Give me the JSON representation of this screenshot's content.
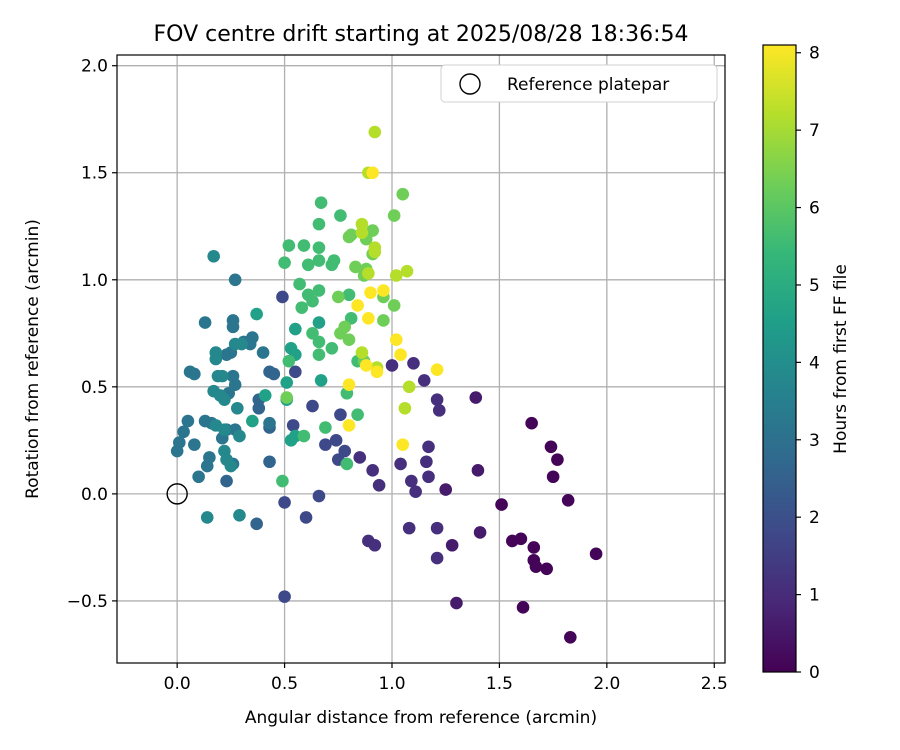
{
  "chart_data": {
    "type": "scatter",
    "title": "FOV centre drift starting at 2025/08/28 18:36:54",
    "xlabel": "Angular distance from reference (arcmin)",
    "ylabel": "Rotation from reference (arcmin)",
    "xlim": [
      -0.28,
      2.55
    ],
    "ylim": [
      -0.79,
      2.05
    ],
    "xticks": [
      0.0,
      0.5,
      1.0,
      1.5,
      2.0,
      2.5
    ],
    "xtick_labels": [
      "0.0",
      "0.5",
      "1.0",
      "1.5",
      "2.0",
      "2.5"
    ],
    "yticks": [
      -0.5,
      0.0,
      0.5,
      1.0,
      1.5,
      2.0
    ],
    "ytick_labels": [
      "−0.5",
      "0.0",
      "0.5",
      "1.0",
      "1.5",
      "2.0"
    ],
    "grid": true,
    "legend": {
      "placement": "top-right",
      "entries": [
        "Reference platepar"
      ]
    },
    "reference_point": {
      "name": "Reference platepar",
      "x": 0.0,
      "y": 0.0,
      "marker": "open-circle"
    },
    "colorbar": {
      "label": "Hours from first FF file",
      "min": 0,
      "max": 8.1,
      "ticks": [
        0,
        1,
        2,
        3,
        4,
        5,
        6,
        7,
        8
      ],
      "tick_labels": [
        "0",
        "1",
        "2",
        "3",
        "4",
        "5",
        "6",
        "7",
        "8"
      ],
      "colormap": "viridis",
      "colors": [
        "#440154",
        "#482878",
        "#3e4989",
        "#31688e",
        "#26828e",
        "#1f9e89",
        "#35b779",
        "#6ece58",
        "#b5de2b",
        "#fde725"
      ]
    },
    "point_value_name": "hours",
    "points": [
      {
        "x": 1.65,
        "y": 0.33,
        "h": 0.1
      },
      {
        "x": 1.74,
        "y": 0.22,
        "h": 0.1
      },
      {
        "x": 1.77,
        "y": 0.16,
        "h": 0.1
      },
      {
        "x": 1.75,
        "y": 0.08,
        "h": 0.1
      },
      {
        "x": 1.82,
        "y": -0.03,
        "h": 0.1
      },
      {
        "x": 1.51,
        "y": -0.05,
        "h": 0.1
      },
      {
        "x": 1.56,
        "y": -0.22,
        "h": 0.1
      },
      {
        "x": 1.6,
        "y": -0.21,
        "h": 0.1
      },
      {
        "x": 1.66,
        "y": -0.25,
        "h": 0.1
      },
      {
        "x": 1.66,
        "y": -0.31,
        "h": 0.1
      },
      {
        "x": 1.67,
        "y": -0.34,
        "h": 0.1
      },
      {
        "x": 1.72,
        "y": -0.35,
        "h": 0.1
      },
      {
        "x": 1.95,
        "y": -0.28,
        "h": 0.1
      },
      {
        "x": 1.61,
        "y": -0.53,
        "h": 0.1
      },
      {
        "x": 1.83,
        "y": -0.67,
        "h": 0.1
      },
      {
        "x": 1.39,
        "y": 0.45,
        "h": 0.6
      },
      {
        "x": 1.4,
        "y": 0.11,
        "h": 0.6
      },
      {
        "x": 1.41,
        "y": -0.18,
        "h": 0.6
      },
      {
        "x": 1.3,
        "y": -0.51,
        "h": 0.6
      },
      {
        "x": 1.28,
        "y": -0.24,
        "h": 0.6
      },
      {
        "x": 1.25,
        "y": 0.02,
        "h": 0.6
      },
      {
        "x": 1.0,
        "y": 0.6,
        "h": 1.1
      },
      {
        "x": 1.1,
        "y": 0.61,
        "h": 1.1
      },
      {
        "x": 1.15,
        "y": 0.53,
        "h": 1.1
      },
      {
        "x": 1.21,
        "y": 0.44,
        "h": 1.1
      },
      {
        "x": 1.22,
        "y": 0.39,
        "h": 1.1
      },
      {
        "x": 1.17,
        "y": 0.22,
        "h": 1.1
      },
      {
        "x": 1.16,
        "y": 0.15,
        "h": 1.1
      },
      {
        "x": 1.17,
        "y": 0.08,
        "h": 1.1
      },
      {
        "x": 1.09,
        "y": 0.06,
        "h": 1.1
      },
      {
        "x": 1.11,
        "y": 0.01,
        "h": 1.1
      },
      {
        "x": 1.04,
        "y": 0.14,
        "h": 1.1
      },
      {
        "x": 0.91,
        "y": 0.11,
        "h": 1.1
      },
      {
        "x": 0.94,
        "y": 0.04,
        "h": 1.1
      },
      {
        "x": 0.85,
        "y": 0.17,
        "h": 1.1
      },
      {
        "x": 0.89,
        "y": -0.22,
        "h": 1.1
      },
      {
        "x": 0.92,
        "y": -0.24,
        "h": 1.1
      },
      {
        "x": 1.08,
        "y": -0.16,
        "h": 1.1
      },
      {
        "x": 1.21,
        "y": -0.16,
        "h": 1.1
      },
      {
        "x": 1.21,
        "y": -0.3,
        "h": 1.1
      },
      {
        "x": 0.74,
        "y": 0.25,
        "h": 1.8
      },
      {
        "x": 0.78,
        "y": 0.2,
        "h": 1.8
      },
      {
        "x": 0.75,
        "y": 0.16,
        "h": 1.8
      },
      {
        "x": 0.76,
        "y": 0.37,
        "h": 1.8
      },
      {
        "x": 0.69,
        "y": 0.23,
        "h": 1.8
      },
      {
        "x": 0.66,
        "y": -0.01,
        "h": 1.8
      },
      {
        "x": 0.6,
        "y": -0.11,
        "h": 1.8
      },
      {
        "x": 0.5,
        "y": -0.04,
        "h": 1.8
      },
      {
        "x": 0.5,
        "y": -0.48,
        "h": 1.8
      },
      {
        "x": 0.55,
        "y": 0.57,
        "h": 1.8
      },
      {
        "x": 0.63,
        "y": 0.41,
        "h": 1.8
      },
      {
        "x": 0.49,
        "y": 0.92,
        "h": 1.8
      },
      {
        "x": 0.54,
        "y": 0.32,
        "h": 1.8
      },
      {
        "x": 0.43,
        "y": 0.31,
        "h": 2.6
      },
      {
        "x": 0.43,
        "y": 0.15,
        "h": 2.6
      },
      {
        "x": 0.43,
        "y": 0.57,
        "h": 2.6
      },
      {
        "x": 0.45,
        "y": 0.56,
        "h": 2.6
      },
      {
        "x": 0.38,
        "y": 0.4,
        "h": 2.6
      },
      {
        "x": 0.38,
        "y": 0.44,
        "h": 2.6
      },
      {
        "x": 0.23,
        "y": 0.06,
        "h": 2.6
      },
      {
        "x": 0.37,
        "y": -0.14,
        "h": 2.6
      },
      {
        "x": 0.13,
        "y": 0.8,
        "h": 3.2
      },
      {
        "x": 0.26,
        "y": 0.81,
        "h": 3.2
      },
      {
        "x": 0.26,
        "y": 0.78,
        "h": 3.2
      },
      {
        "x": 0.27,
        "y": 1.0,
        "h": 3.2
      },
      {
        "x": 0.06,
        "y": 0.57,
        "h": 3.2
      },
      {
        "x": 0.08,
        "y": 0.56,
        "h": 3.2
      },
      {
        "x": 0.05,
        "y": 0.34,
        "h": 3.2
      },
      {
        "x": 0.03,
        "y": 0.29,
        "h": 3.2
      },
      {
        "x": 0.01,
        "y": 0.24,
        "h": 3.2
      },
      {
        "x": 0.0,
        "y": 0.2,
        "h": 3.2
      },
      {
        "x": 0.08,
        "y": 0.23,
        "h": 3.2
      },
      {
        "x": 0.1,
        "y": 0.08,
        "h": 3.2
      },
      {
        "x": 0.14,
        "y": 0.13,
        "h": 3.2
      },
      {
        "x": 0.15,
        "y": 0.17,
        "h": 3.2
      },
      {
        "x": 0.13,
        "y": 0.34,
        "h": 3.2
      },
      {
        "x": 0.16,
        "y": 0.33,
        "h": 3.2
      },
      {
        "x": 0.23,
        "y": 0.3,
        "h": 3.2
      },
      {
        "x": 0.27,
        "y": 0.3,
        "h": 3.2
      },
      {
        "x": 0.21,
        "y": 0.26,
        "h": 3.2
      },
      {
        "x": 0.26,
        "y": 0.14,
        "h": 3.2
      },
      {
        "x": 0.24,
        "y": 0.47,
        "h": 3.2
      },
      {
        "x": 0.27,
        "y": 0.51,
        "h": 3.2
      },
      {
        "x": 0.26,
        "y": 0.55,
        "h": 3.2
      },
      {
        "x": 0.23,
        "y": 0.65,
        "h": 3.2
      },
      {
        "x": 0.25,
        "y": 0.66,
        "h": 3.2
      },
      {
        "x": 0.35,
        "y": 0.73,
        "h": 3.2
      },
      {
        "x": 0.34,
        "y": 0.7,
        "h": 3.2
      },
      {
        "x": 0.4,
        "y": 0.66,
        "h": 3.2
      },
      {
        "x": 0.31,
        "y": 0.71,
        "h": 3.2
      },
      {
        "x": 0.43,
        "y": 0.33,
        "h": 3.2
      },
      {
        "x": 0.17,
        "y": 1.11,
        "h": 3.8
      },
      {
        "x": 0.18,
        "y": 0.66,
        "h": 3.8
      },
      {
        "x": 0.18,
        "y": 0.63,
        "h": 3.8
      },
      {
        "x": 0.19,
        "y": 0.55,
        "h": 3.8
      },
      {
        "x": 0.21,
        "y": 0.55,
        "h": 3.8
      },
      {
        "x": 0.17,
        "y": 0.48,
        "h": 3.8
      },
      {
        "x": 0.2,
        "y": 0.46,
        "h": 3.8
      },
      {
        "x": 0.22,
        "y": 0.44,
        "h": 3.8
      },
      {
        "x": 0.18,
        "y": 0.32,
        "h": 3.8
      },
      {
        "x": 0.22,
        "y": 0.3,
        "h": 3.8
      },
      {
        "x": 0.22,
        "y": 0.2,
        "h": 3.8
      },
      {
        "x": 0.23,
        "y": 0.16,
        "h": 3.8
      },
      {
        "x": 0.25,
        "y": 0.13,
        "h": 3.8
      },
      {
        "x": 0.28,
        "y": 0.4,
        "h": 3.8
      },
      {
        "x": 0.27,
        "y": 0.7,
        "h": 3.8
      },
      {
        "x": 0.3,
        "y": 0.7,
        "h": 3.8
      },
      {
        "x": 0.29,
        "y": 0.27,
        "h": 3.8
      },
      {
        "x": 0.29,
        "y": -0.1,
        "h": 3.8
      },
      {
        "x": 0.14,
        "y": -0.11,
        "h": 3.8
      },
      {
        "x": 0.37,
        "y": 0.84,
        "h": 4.6
      },
      {
        "x": 0.41,
        "y": 0.46,
        "h": 4.6
      },
      {
        "x": 0.51,
        "y": 0.44,
        "h": 4.6
      },
      {
        "x": 0.51,
        "y": 0.52,
        "h": 4.6
      },
      {
        "x": 0.55,
        "y": 0.77,
        "h": 4.6
      },
      {
        "x": 0.53,
        "y": 0.68,
        "h": 4.6
      },
      {
        "x": 0.55,
        "y": 0.65,
        "h": 4.6
      },
      {
        "x": 0.53,
        "y": 0.25,
        "h": 4.6
      },
      {
        "x": 0.55,
        "y": 0.27,
        "h": 4.6
      },
      {
        "x": 0.66,
        "y": 0.8,
        "h": 4.6
      },
      {
        "x": 0.67,
        "y": 0.53,
        "h": 4.6
      },
      {
        "x": 0.35,
        "y": 0.34,
        "h": 4.6
      },
      {
        "x": 0.52,
        "y": 0.62,
        "h": 5.6
      },
      {
        "x": 0.5,
        "y": 1.08,
        "h": 5.6
      },
      {
        "x": 0.52,
        "y": 1.16,
        "h": 5.6
      },
      {
        "x": 0.59,
        "y": 1.16,
        "h": 5.6
      },
      {
        "x": 0.61,
        "y": 1.07,
        "h": 5.6
      },
      {
        "x": 0.66,
        "y": 1.09,
        "h": 5.6
      },
      {
        "x": 0.66,
        "y": 1.15,
        "h": 5.6
      },
      {
        "x": 0.66,
        "y": 1.26,
        "h": 5.6
      },
      {
        "x": 0.67,
        "y": 1.36,
        "h": 5.6
      },
      {
        "x": 0.57,
        "y": 0.98,
        "h": 5.6
      },
      {
        "x": 0.61,
        "y": 0.93,
        "h": 5.6
      },
      {
        "x": 0.63,
        "y": 0.9,
        "h": 5.6
      },
      {
        "x": 0.58,
        "y": 0.87,
        "h": 5.6
      },
      {
        "x": 0.63,
        "y": 0.75,
        "h": 5.6
      },
      {
        "x": 0.66,
        "y": 0.71,
        "h": 5.6
      },
      {
        "x": 0.66,
        "y": 0.65,
        "h": 5.6
      },
      {
        "x": 0.72,
        "y": 0.68,
        "h": 5.6
      },
      {
        "x": 0.66,
        "y": 0.95,
        "h": 5.6
      },
      {
        "x": 0.72,
        "y": 1.07,
        "h": 5.6
      },
      {
        "x": 0.69,
        "y": 0.31,
        "h": 5.6
      },
      {
        "x": 0.59,
        "y": 0.27,
        "h": 5.6
      },
      {
        "x": 0.79,
        "y": 0.14,
        "h": 5.6
      },
      {
        "x": 0.84,
        "y": 0.37,
        "h": 5.6
      },
      {
        "x": 0.79,
        "y": 0.47,
        "h": 5.6
      },
      {
        "x": 0.49,
        "y": 0.06,
        "h": 5.6
      },
      {
        "x": 0.84,
        "y": 0.62,
        "h": 5.6
      },
      {
        "x": 0.81,
        "y": 0.82,
        "h": 5.6
      },
      {
        "x": 0.8,
        "y": 0.93,
        "h": 5.6
      },
      {
        "x": 0.76,
        "y": 1.3,
        "h": 5.6
      },
      {
        "x": 0.73,
        "y": 1.09,
        "h": 5.6
      },
      {
        "x": 0.51,
        "y": 0.45,
        "h": 6.3
      },
      {
        "x": 0.78,
        "y": 0.78,
        "h": 6.3
      },
      {
        "x": 0.76,
        "y": 0.75,
        "h": 6.3
      },
      {
        "x": 0.8,
        "y": 0.72,
        "h": 6.3
      },
      {
        "x": 0.75,
        "y": 0.92,
        "h": 6.3
      },
      {
        "x": 0.8,
        "y": 1.2,
        "h": 6.3
      },
      {
        "x": 0.81,
        "y": 1.21,
        "h": 6.3
      },
      {
        "x": 0.83,
        "y": 1.06,
        "h": 6.3
      },
      {
        "x": 0.87,
        "y": 1.02,
        "h": 6.3
      },
      {
        "x": 0.88,
        "y": 1.05,
        "h": 6.3
      },
      {
        "x": 0.91,
        "y": 1.12,
        "h": 6.3
      },
      {
        "x": 0.88,
        "y": 1.19,
        "h": 6.3
      },
      {
        "x": 0.91,
        "y": 1.23,
        "h": 6.3
      },
      {
        "x": 0.96,
        "y": 0.81,
        "h": 6.3
      },
      {
        "x": 0.96,
        "y": 0.92,
        "h": 6.3
      },
      {
        "x": 1.01,
        "y": 0.88,
        "h": 6.3
      },
      {
        "x": 1.01,
        "y": 1.3,
        "h": 6.3
      },
      {
        "x": 1.05,
        "y": 1.4,
        "h": 6.3
      },
      {
        "x": 0.87,
        "y": 0.62,
        "h": 6.3
      },
      {
        "x": 0.92,
        "y": 1.69,
        "h": 7.2
      },
      {
        "x": 0.86,
        "y": 1.26,
        "h": 7.2
      },
      {
        "x": 0.89,
        "y": 1.03,
        "h": 7.2
      },
      {
        "x": 1.02,
        "y": 1.02,
        "h": 7.2
      },
      {
        "x": 1.07,
        "y": 1.04,
        "h": 7.2
      },
      {
        "x": 0.92,
        "y": 1.15,
        "h": 7.2
      },
      {
        "x": 0.92,
        "y": 1.13,
        "h": 7.2
      },
      {
        "x": 0.86,
        "y": 1.22,
        "h": 7.2
      },
      {
        "x": 0.89,
        "y": 1.5,
        "h": 7.2
      },
      {
        "x": 0.86,
        "y": 0.66,
        "h": 7.2
      },
      {
        "x": 0.93,
        "y": 0.59,
        "h": 7.2
      },
      {
        "x": 1.08,
        "y": 0.5,
        "h": 7.2
      },
      {
        "x": 1.06,
        "y": 0.4,
        "h": 7.2
      },
      {
        "x": 0.91,
        "y": 1.5,
        "h": 8.1
      },
      {
        "x": 0.9,
        "y": 0.94,
        "h": 8.1
      },
      {
        "x": 0.96,
        "y": 0.95,
        "h": 8.1
      },
      {
        "x": 0.84,
        "y": 0.88,
        "h": 8.1
      },
      {
        "x": 0.89,
        "y": 0.82,
        "h": 8.1
      },
      {
        "x": 1.02,
        "y": 0.72,
        "h": 8.1
      },
      {
        "x": 1.04,
        "y": 0.65,
        "h": 8.1
      },
      {
        "x": 0.93,
        "y": 0.57,
        "h": 8.1
      },
      {
        "x": 0.88,
        "y": 0.6,
        "h": 8.1
      },
      {
        "x": 1.21,
        "y": 0.58,
        "h": 8.1
      },
      {
        "x": 0.8,
        "y": 0.51,
        "h": 8.1
      },
      {
        "x": 1.05,
        "y": 0.23,
        "h": 8.1
      },
      {
        "x": 0.8,
        "y": 0.32,
        "h": 8.1
      }
    ]
  }
}
